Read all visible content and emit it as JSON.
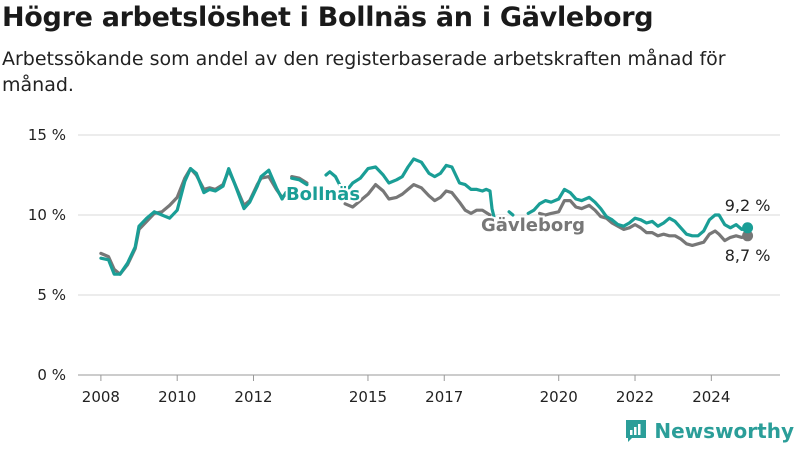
{
  "title": "Högre arbetslöshet i Bollnäs än i Gävleborg",
  "subtitle": "Arbetssökande som andel av den registerbaserade arbetskraften månad för månad.",
  "brand": {
    "name": "Newsworthy",
    "logo_icon": "newsworthy-logo-icon"
  },
  "colors": {
    "bollnas": "#1a9e96",
    "gavleborg": "#777777",
    "grid": "#d9d9d9",
    "axis": "#999999",
    "text": "#222222"
  },
  "chart_data": {
    "type": "line",
    "title": "Högre arbetslöshet i Bollnäs än i Gävleborg",
    "ylim": [
      0,
      15
    ],
    "y_ticks": [
      {
        "value": 0,
        "label": "0 %"
      },
      {
        "value": 5,
        "label": "5 %"
      },
      {
        "value": 10,
        "label": "10 %"
      },
      {
        "value": 15,
        "label": "15 %"
      }
    ],
    "xlim": [
      2007.4,
      2025.8
    ],
    "x_ticks": [
      {
        "value": 2008,
        "label": "2008"
      },
      {
        "value": 2010,
        "label": "2010"
      },
      {
        "value": 2012,
        "label": "2012"
      },
      {
        "value": 2015,
        "label": "2015"
      },
      {
        "value": 2017,
        "label": "2017"
      },
      {
        "value": 2020,
        "label": "2020"
      },
      {
        "value": 2022,
        "label": "2022"
      },
      {
        "value": 2024,
        "label": "2024"
      }
    ],
    "grid": true,
    "legend": "inline labels",
    "series": [
      {
        "name": "Bollnäs",
        "color": "#1a9e96",
        "end_label": "9,2 %",
        "segments": [
          [
            [
              2008.0,
              7.3
            ],
            [
              2008.2,
              7.2
            ],
            [
              2008.35,
              6.3
            ],
            [
              2008.5,
              6.3
            ],
            [
              2008.7,
              7.0
            ],
            [
              2008.9,
              8.0
            ],
            [
              2009.0,
              9.3
            ],
            [
              2009.2,
              9.8
            ],
            [
              2009.4,
              10.2
            ],
            [
              2009.6,
              10.0
            ],
            [
              2009.8,
              9.8
            ],
            [
              2010.0,
              10.3
            ],
            [
              2010.2,
              12.1
            ],
            [
              2010.35,
              12.9
            ],
            [
              2010.5,
              12.6
            ],
            [
              2010.7,
              11.4
            ],
            [
              2010.85,
              11.6
            ],
            [
              2011.0,
              11.5
            ],
            [
              2011.2,
              11.8
            ],
            [
              2011.35,
              12.9
            ],
            [
              2011.5,
              12.0
            ],
            [
              2011.75,
              10.4
            ],
            [
              2011.9,
              10.8
            ],
            [
              2012.1,
              11.8
            ],
            [
              2012.2,
              12.4
            ],
            [
              2012.4,
              12.8
            ],
            [
              2012.6,
              11.7
            ],
            [
              2012.75,
              11.0
            ],
            [
              2012.85,
              11.4
            ]
          ],
          [
            [
              2013.0,
              12.3
            ],
            [
              2013.2,
              12.2
            ],
            [
              2013.4,
              11.9
            ]
          ],
          [
            [
              2013.9,
              12.5
            ],
            [
              2014.0,
              12.7
            ],
            [
              2014.15,
              12.4
            ],
            [
              2014.3,
              11.7
            ]
          ],
          [
            [
              2014.5,
              11.7
            ],
            [
              2014.6,
              12.0
            ],
            [
              2014.8,
              12.3
            ],
            [
              2015.0,
              12.9
            ],
            [
              2015.2,
              13.0
            ],
            [
              2015.4,
              12.5
            ],
            [
              2015.55,
              12.0
            ],
            [
              2015.75,
              12.2
            ],
            [
              2015.9,
              12.4
            ],
            [
              2016.05,
              13.0
            ],
            [
              2016.2,
              13.5
            ],
            [
              2016.4,
              13.3
            ],
            [
              2016.6,
              12.6
            ],
            [
              2016.75,
              12.4
            ],
            [
              2016.9,
              12.6
            ],
            [
              2017.05,
              13.1
            ],
            [
              2017.2,
              13.0
            ],
            [
              2017.4,
              12.0
            ],
            [
              2017.55,
              11.9
            ],
            [
              2017.7,
              11.6
            ],
            [
              2017.85,
              11.6
            ],
            [
              2018.0,
              11.5
            ],
            [
              2018.1,
              11.6
            ],
            [
              2018.2,
              11.5
            ],
            [
              2018.25,
              10.4
            ],
            [
              2018.3,
              9.9
            ]
          ],
          [
            [
              2018.7,
              10.2
            ],
            [
              2018.8,
              10.0
            ]
          ],
          [
            [
              2019.2,
              10.1
            ],
            [
              2019.35,
              10.3
            ],
            [
              2019.5,
              10.7
            ],
            [
              2019.65,
              10.9
            ],
            [
              2019.8,
              10.8
            ],
            [
              2020.0,
              11.0
            ],
            [
              2020.15,
              11.6
            ],
            [
              2020.3,
              11.4
            ],
            [
              2020.45,
              11.0
            ],
            [
              2020.6,
              10.9
            ],
            [
              2020.8,
              11.1
            ],
            [
              2020.95,
              10.8
            ],
            [
              2021.1,
              10.4
            ],
            [
              2021.25,
              9.9
            ],
            [
              2021.4,
              9.7
            ],
            [
              2021.55,
              9.4
            ],
            [
              2021.7,
              9.3
            ],
            [
              2021.85,
              9.5
            ],
            [
              2022.0,
              9.8
            ],
            [
              2022.15,
              9.7
            ],
            [
              2022.3,
              9.5
            ],
            [
              2022.45,
              9.6
            ],
            [
              2022.6,
              9.3
            ],
            [
              2022.75,
              9.5
            ],
            [
              2022.9,
              9.8
            ],
            [
              2023.05,
              9.6
            ],
            [
              2023.2,
              9.2
            ],
            [
              2023.35,
              8.8
            ],
            [
              2023.5,
              8.7
            ],
            [
              2023.65,
              8.7
            ],
            [
              2023.8,
              9.0
            ],
            [
              2023.95,
              9.7
            ],
            [
              2024.1,
              10.0
            ],
            [
              2024.2,
              10.0
            ],
            [
              2024.35,
              9.4
            ],
            [
              2024.5,
              9.2
            ],
            [
              2024.65,
              9.4
            ],
            [
              2024.8,
              9.1
            ],
            [
              2024.95,
              9.2
            ]
          ]
        ]
      },
      {
        "name": "Gävleborg",
        "color": "#777777",
        "end_label": "8,7 %",
        "segments": [
          [
            [
              2008.0,
              7.6
            ],
            [
              2008.2,
              7.4
            ],
            [
              2008.35,
              6.6
            ],
            [
              2008.5,
              6.3
            ],
            [
              2008.7,
              6.9
            ],
            [
              2008.9,
              7.9
            ],
            [
              2009.0,
              9.1
            ],
            [
              2009.2,
              9.6
            ],
            [
              2009.4,
              10.1
            ],
            [
              2009.6,
              10.2
            ],
            [
              2009.8,
              10.6
            ],
            [
              2010.0,
              11.1
            ],
            [
              2010.2,
              12.3
            ],
            [
              2010.35,
              12.9
            ],
            [
              2010.5,
              12.5
            ],
            [
              2010.7,
              11.6
            ],
            [
              2010.85,
              11.7
            ],
            [
              2011.0,
              11.6
            ],
            [
              2011.2,
              11.9
            ],
            [
              2011.35,
              12.8
            ],
            [
              2011.5,
              12.0
            ],
            [
              2011.75,
              10.6
            ],
            [
              2011.9,
              10.9
            ],
            [
              2012.1,
              11.9
            ],
            [
              2012.2,
              12.3
            ],
            [
              2012.4,
              12.4
            ],
            [
              2012.6,
              11.6
            ],
            [
              2012.75,
              11.1
            ],
            [
              2012.85,
              11.3
            ]
          ],
          [
            [
              2013.0,
              12.4
            ],
            [
              2013.2,
              12.3
            ],
            [
              2013.4,
              12.0
            ]
          ],
          [
            [
              2014.4,
              10.7
            ],
            [
              2014.6,
              10.5
            ],
            [
              2014.8,
              10.9
            ],
            [
              2015.0,
              11.3
            ],
            [
              2015.2,
              11.9
            ],
            [
              2015.4,
              11.5
            ],
            [
              2015.55,
              11.0
            ],
            [
              2015.75,
              11.1
            ],
            [
              2015.9,
              11.3
            ],
            [
              2016.05,
              11.6
            ],
            [
              2016.2,
              11.9
            ],
            [
              2016.4,
              11.7
            ],
            [
              2016.6,
              11.2
            ],
            [
              2016.75,
              10.9
            ],
            [
              2016.9,
              11.1
            ],
            [
              2017.05,
              11.5
            ],
            [
              2017.2,
              11.4
            ],
            [
              2017.4,
              10.8
            ],
            [
              2017.55,
              10.3
            ],
            [
              2017.7,
              10.1
            ],
            [
              2017.85,
              10.3
            ],
            [
              2018.0,
              10.3
            ],
            [
              2018.2,
              10.0
            ]
          ],
          [
            [
              2019.5,
              10.1
            ],
            [
              2019.65,
              10.0
            ],
            [
              2019.8,
              10.1
            ],
            [
              2020.0,
              10.2
            ],
            [
              2020.15,
              10.9
            ],
            [
              2020.3,
              10.9
            ],
            [
              2020.45,
              10.5
            ],
            [
              2020.6,
              10.4
            ],
            [
              2020.8,
              10.6
            ],
            [
              2020.95,
              10.3
            ],
            [
              2021.1,
              9.9
            ],
            [
              2021.25,
              9.8
            ],
            [
              2021.4,
              9.5
            ],
            [
              2021.55,
              9.3
            ],
            [
              2021.7,
              9.1
            ],
            [
              2021.85,
              9.2
            ],
            [
              2022.0,
              9.4
            ],
            [
              2022.15,
              9.2
            ],
            [
              2022.3,
              8.9
            ],
            [
              2022.45,
              8.9
            ],
            [
              2022.6,
              8.7
            ],
            [
              2022.75,
              8.8
            ],
            [
              2022.9,
              8.7
            ],
            [
              2023.05,
              8.7
            ],
            [
              2023.2,
              8.5
            ],
            [
              2023.35,
              8.2
            ],
            [
              2023.5,
              8.1
            ],
            [
              2023.65,
              8.2
            ],
            [
              2023.8,
              8.3
            ],
            [
              2023.95,
              8.8
            ],
            [
              2024.1,
              9.0
            ],
            [
              2024.2,
              8.8
            ],
            [
              2024.35,
              8.4
            ],
            [
              2024.5,
              8.6
            ],
            [
              2024.65,
              8.7
            ],
            [
              2024.8,
              8.6
            ],
            [
              2024.95,
              8.7
            ]
          ]
        ]
      }
    ]
  }
}
